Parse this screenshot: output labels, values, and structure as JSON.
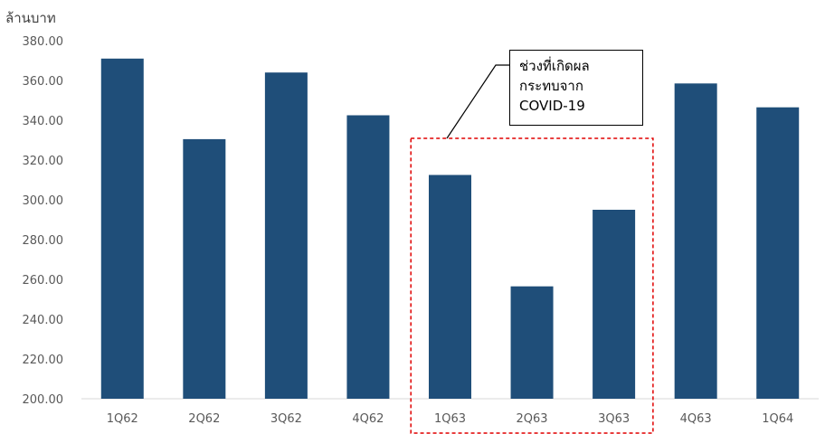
{
  "chart_data": {
    "type": "bar",
    "ylabel": "ล้านบาท",
    "categories": [
      "1Q62",
      "2Q62",
      "3Q62",
      "4Q62",
      "1Q63",
      "2Q63",
      "3Q63",
      "4Q63",
      "1Q64"
    ],
    "values": [
      371,
      330.5,
      364,
      342.5,
      312.5,
      256.5,
      295,
      358.5,
      346.5
    ],
    "ylim": [
      200,
      380
    ],
    "yticks": [
      "200.00",
      "220.00",
      "240.00",
      "260.00",
      "280.00",
      "300.00",
      "320.00",
      "340.00",
      "360.00",
      "380.00"
    ],
    "grid": false,
    "bar_color": "#1f4e79",
    "annotation": {
      "lines": [
        "ช่วงที่เกิดผล",
        "กระทบจาก",
        "COVID-19"
      ],
      "highlight_categories": [
        "1Q63",
        "2Q63",
        "3Q63"
      ],
      "highlight_color": "#e00000"
    }
  }
}
